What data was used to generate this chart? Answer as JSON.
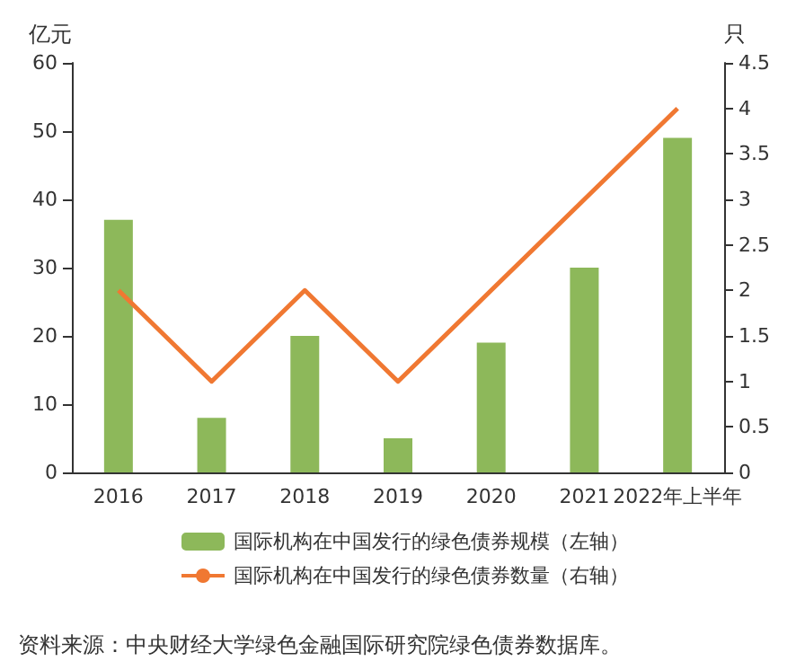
{
  "chart_data": {
    "type": "bar",
    "categories": [
      "2016",
      "2017",
      "2018",
      "2019",
      "2020",
      "2021",
      "2022年上半年"
    ],
    "series": [
      {
        "name": "国际机构在中国发行的绿色债券规模（左轴）",
        "color": "#8db85a",
        "values": [
          37,
          8,
          20,
          5,
          19,
          30,
          49
        ]
      },
      {
        "name": "国际机构在中国发行的绿色债券数量（右轴）",
        "color": "#f07832",
        "type": "line",
        "axis": "y2",
        "values": [
          2,
          1,
          2,
          1,
          2,
          3,
          4
        ]
      }
    ],
    "ylabel": "亿元",
    "y2label": "只",
    "ylim": [
      0,
      60
    ],
    "yticks": [
      0,
      10,
      20,
      30,
      40,
      50,
      60
    ],
    "y2lim": [
      0,
      4.5
    ],
    "y2ticks": [
      0,
      0.5,
      1,
      1.5,
      2,
      2.5,
      3,
      3.5,
      4,
      4.5
    ],
    "marker": "none",
    "legend": "bottom",
    "annotations": [
      "资料来源：中央财经大学绿色金融国际研究院绿色债券数据库。"
    ]
  }
}
